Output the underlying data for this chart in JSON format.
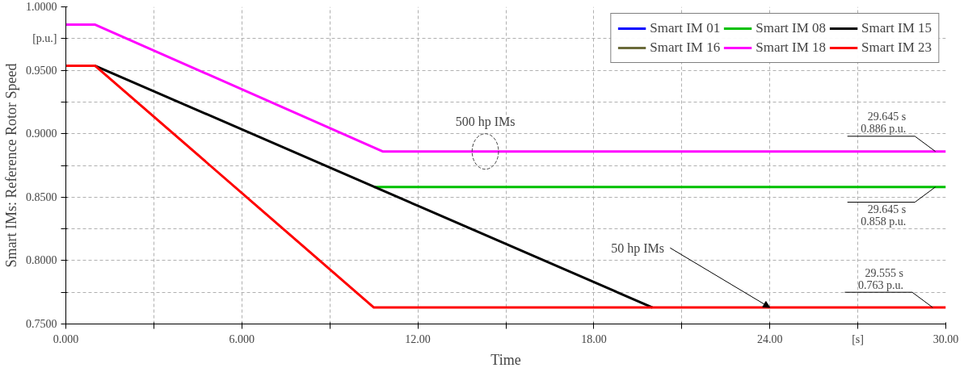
{
  "chart_data": {
    "type": "line",
    "xlabel": "Time",
    "ylabel": "Smart IMs: Reference Rotor Speed",
    "xlim": [
      0,
      30
    ],
    "ylim": [
      0.75,
      1.0
    ],
    "xticks": [
      {
        "value": 0,
        "label": "0.000"
      },
      {
        "value": 3,
        "label": null
      },
      {
        "value": 6,
        "label": "6.000"
      },
      {
        "value": 9,
        "label": null
      },
      {
        "value": 12,
        "label": "12.00"
      },
      {
        "value": 15,
        "label": null
      },
      {
        "value": 18,
        "label": "18.00"
      },
      {
        "value": 21,
        "label": null
      },
      {
        "value": 24,
        "label": "24.00"
      },
      {
        "value": 27,
        "label": "[s]"
      },
      {
        "value": 30,
        "label": "30.00"
      }
    ],
    "yticks": [
      {
        "value": 0.75,
        "label": "0.7500"
      },
      {
        "value": 0.775,
        "label": null
      },
      {
        "value": 0.8,
        "label": "0.8000"
      },
      {
        "value": 0.825,
        "label": null
      },
      {
        "value": 0.85,
        "label": "0.8500"
      },
      {
        "value": 0.875,
        "label": null
      },
      {
        "value": 0.9,
        "label": "0.9000"
      },
      {
        "value": 0.925,
        "label": null
      },
      {
        "value": 0.95,
        "label": "0.9500"
      },
      {
        "value": 0.975,
        "label": "[p.u.]"
      },
      {
        "value": 1.0,
        "label": "1.0000"
      }
    ],
    "grid": true,
    "legend": "top right",
    "marker": "none",
    "line_style": "solid",
    "series": [
      {
        "name": "Smart IM 01",
        "color": "#0000ff"
      },
      {
        "name": "Smart IM 08",
        "color": "#00c000",
        "x": [
          10.5,
          30
        ],
        "values": [
          0.858,
          0.858
        ]
      },
      {
        "name": "Smart IM 15",
        "color": "#000000",
        "x": [
          0,
          1,
          20
        ],
        "values": [
          0.9535,
          0.9535,
          0.763
        ]
      },
      {
        "name": "Smart IM 16",
        "color": "#6b6b3a"
      },
      {
        "name": "Smart IM 18",
        "color": "#ff00ff",
        "x": [
          0,
          1,
          10.8,
          30
        ],
        "values": [
          0.986,
          0.986,
          0.886,
          0.886
        ]
      },
      {
        "name": "Smart IM 23",
        "color": "#ff0000",
        "x": [
          0,
          1,
          10.5,
          30
        ],
        "values": [
          0.9535,
          0.9535,
          0.763,
          0.763
        ]
      }
    ],
    "annotations": [
      {
        "text": "500 hp IMs",
        "x": 14.3,
        "y": 0.886
      },
      {
        "text": "50 hp IMs",
        "x": 24,
        "y": 0.763
      },
      {
        "text": "29.645 s\n0.886 p.u.",
        "x": 29.645,
        "y": 0.886
      },
      {
        "text": "29.645 s\n0.858 p.u.",
        "x": 29.645,
        "y": 0.858
      },
      {
        "text": "29.555 s\n0.763 p.u.",
        "x": 29.555,
        "y": 0.763
      }
    ]
  }
}
